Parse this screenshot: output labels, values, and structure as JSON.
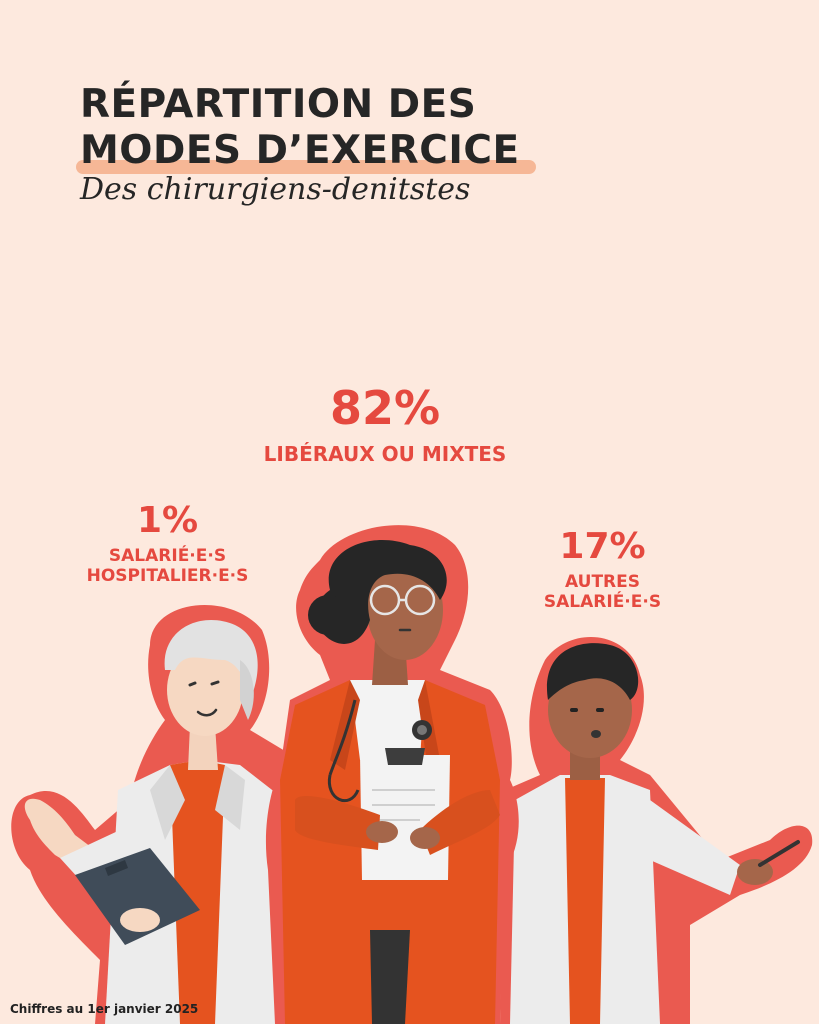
{
  "title": {
    "line1": "RÉPARTITION DES",
    "line2": "MODES D’EXERCICE",
    "subtitle": "Des chirurgiens-denitstes"
  },
  "stats": {
    "liberal": {
      "percent": "82%",
      "label": "LIBÉRAUX OU MIXTES"
    },
    "hospital": {
      "percent": "1%",
      "label_line1": "SALARIÉ·E·S",
      "label_line2": "HOSPITALIER·E·S"
    },
    "other": {
      "percent": "17%",
      "label_line1": "AUTRES",
      "label_line2": "SALARIÉ·E·S"
    }
  },
  "footnote": "Chiffres au 1er janvier 2025",
  "colors": {
    "background": "#fde9de",
    "accent": "#e5493f",
    "outline": "#ea5a50",
    "highlight": "#f6b796",
    "coat": "#e5531f",
    "lab_coat": "#ececec",
    "text": "#262626"
  }
}
